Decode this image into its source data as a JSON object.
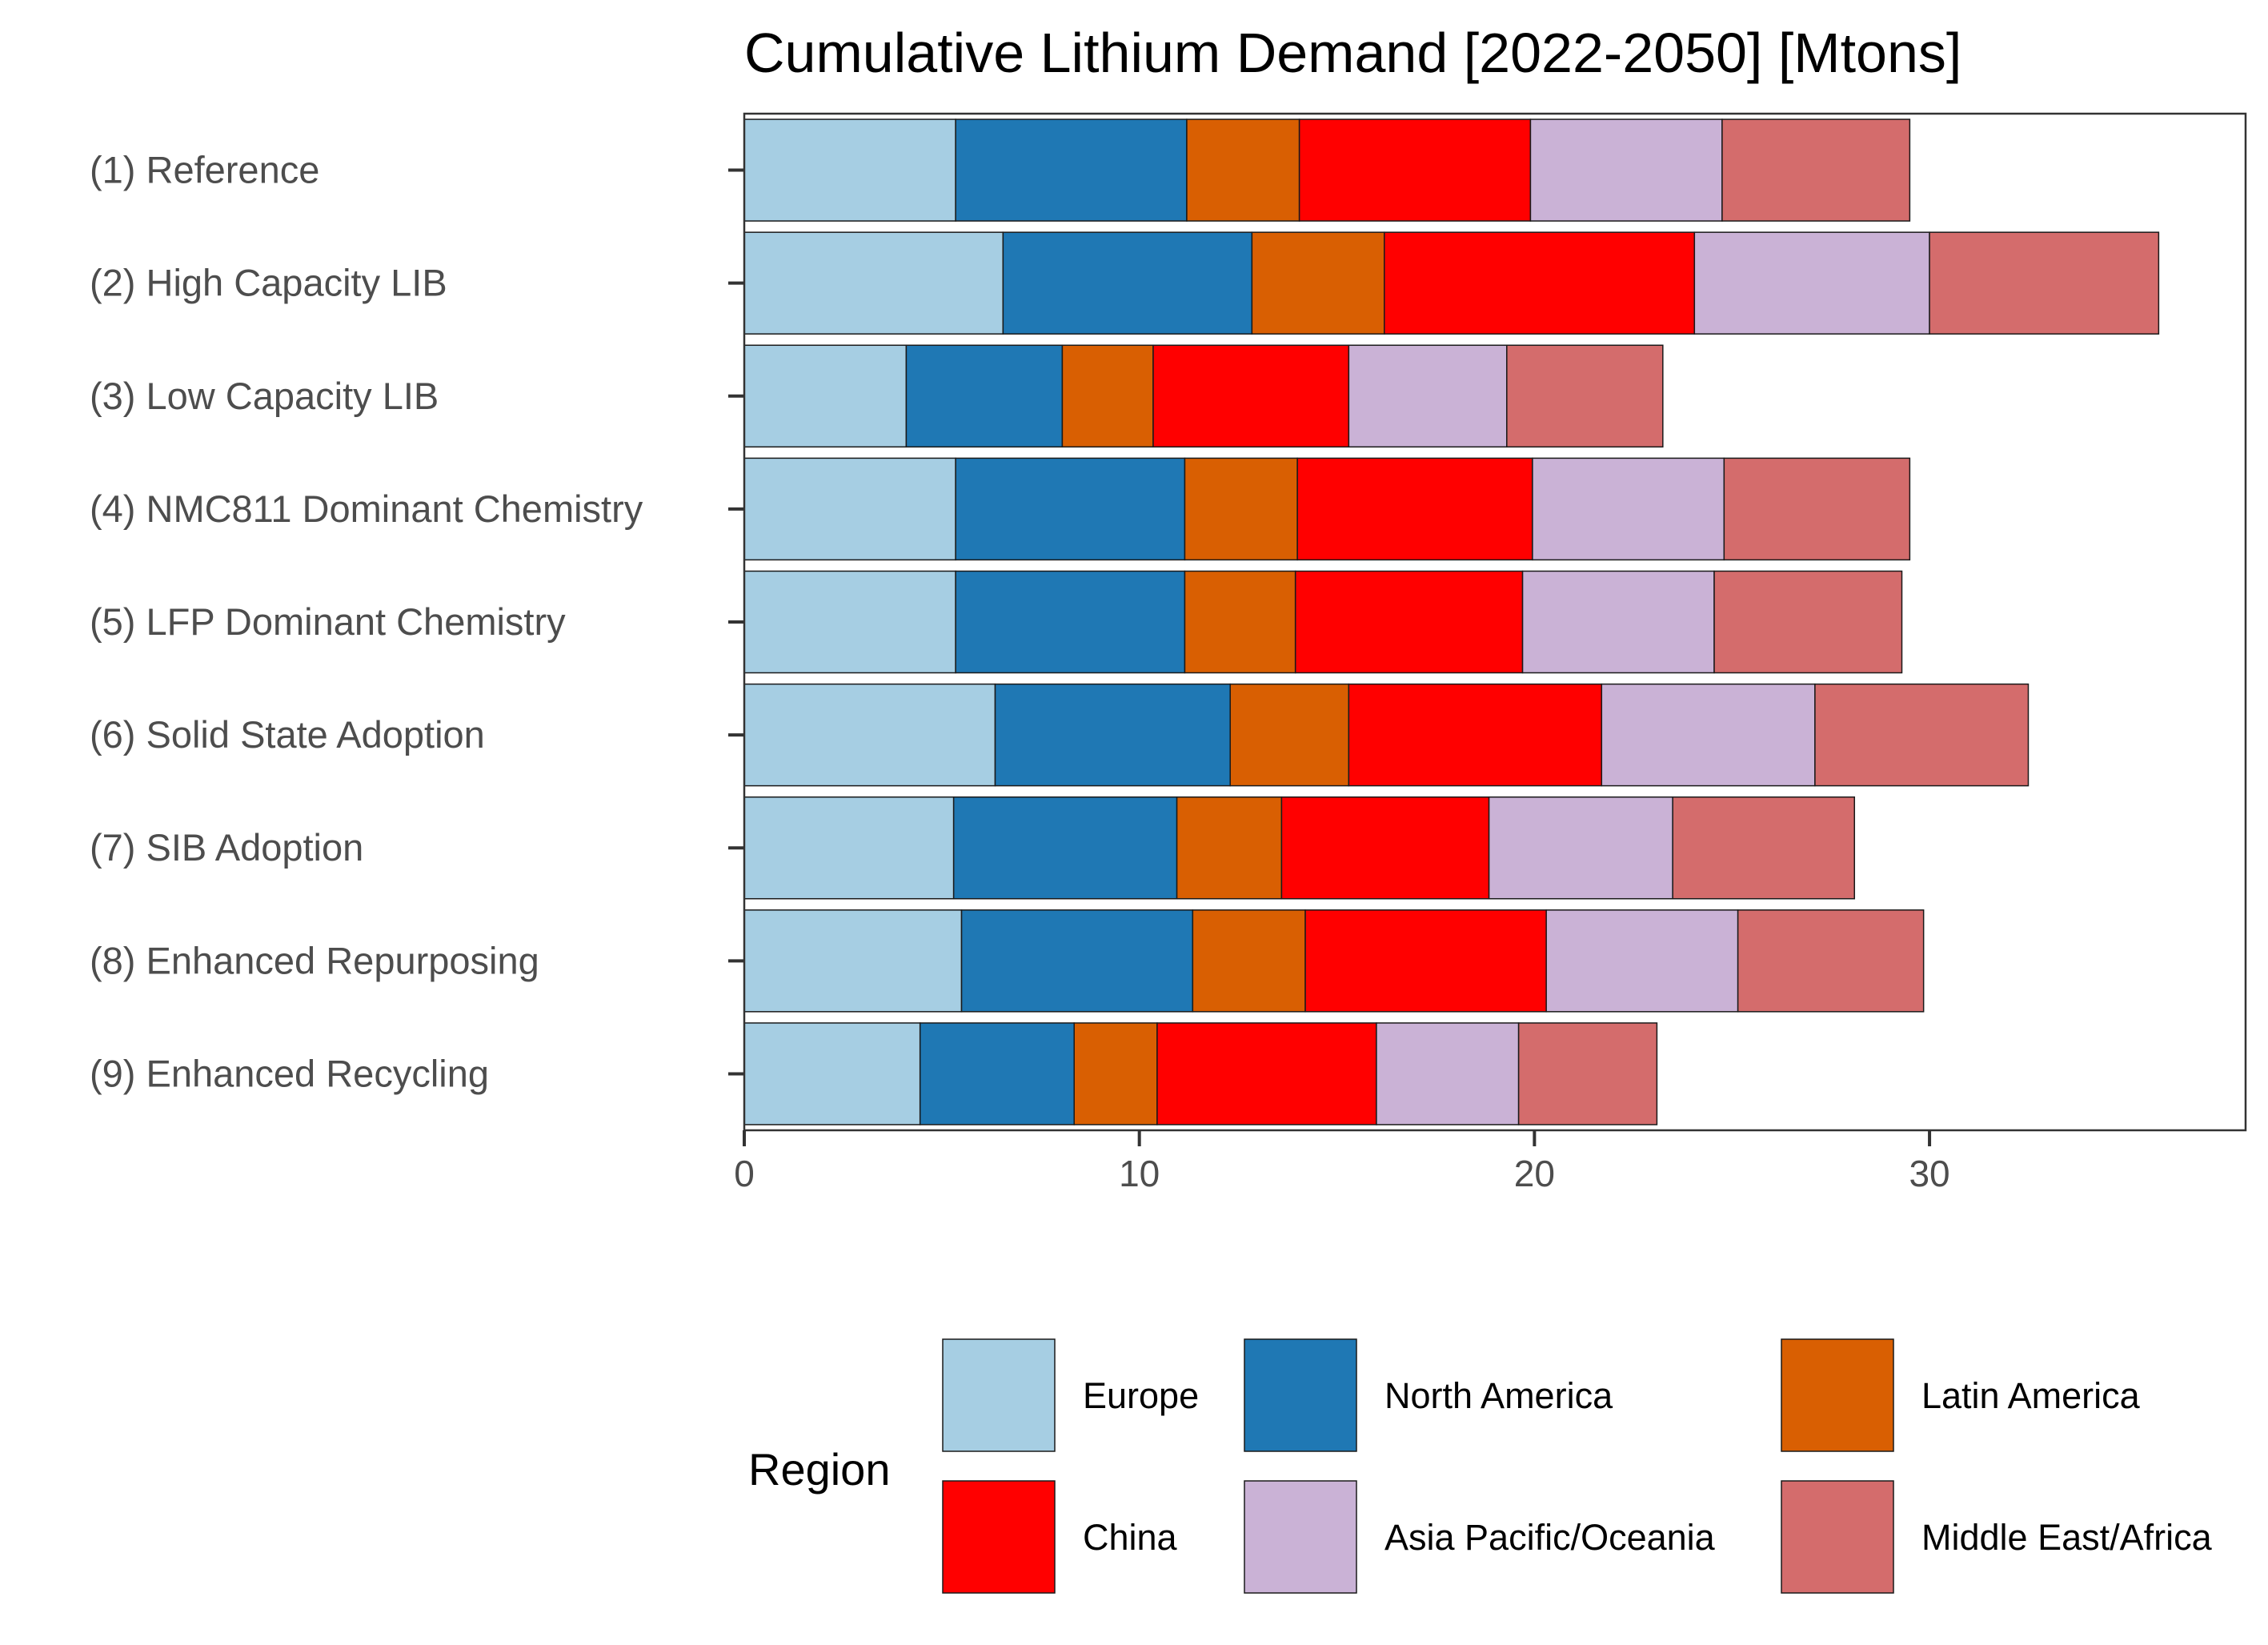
{
  "chart_data": {
    "type": "bar",
    "orientation": "horizontal",
    "stacked": true,
    "title": "Cumulative Lithium Demand [2022-2050] [Mtons]",
    "xlabel": "",
    "ylabel": "",
    "xlim": [
      0,
      38
    ],
    "x_ticks": [
      0,
      10,
      20,
      30
    ],
    "grid": false,
    "legend_title": "Region",
    "legend_position": "bottom",
    "categories": [
      "(1) Reference",
      "(2) High Capacity LIB",
      "(3) Low Capacity LIB",
      "(4) NMC811 Dominant Chemistry",
      "(5) LFP Dominant Chemistry",
      "(6) Solid State Adoption",
      "(7) SIB Adoption",
      "(8) Enhanced Repurposing",
      "(9) Enhanced Recycling"
    ],
    "series": [
      {
        "name": "Europe",
        "color": "#a6cee3",
        "values": [
          5.35,
          6.55,
          4.1,
          5.35,
          5.35,
          6.35,
          5.3,
          5.5,
          4.45
        ]
      },
      {
        "name": "North America",
        "color": "#1f78b4",
        "values": [
          5.85,
          6.3,
          3.95,
          5.8,
          5.8,
          5.95,
          5.65,
          5.85,
          3.9
        ]
      },
      {
        "name": "Latin America",
        "color": "#d95f02",
        "values": [
          2.85,
          3.35,
          2.3,
          2.85,
          2.8,
          3.0,
          2.65,
          2.85,
          2.1
        ]
      },
      {
        "name": "China",
        "color": "#ff0000",
        "values": [
          5.85,
          7.85,
          4.95,
          5.95,
          5.75,
          6.4,
          5.25,
          6.1,
          5.55
        ]
      },
      {
        "name": "Asia Pacific/Oceania",
        "color": "#cab2d6",
        "values": [
          4.85,
          5.95,
          4.0,
          4.85,
          4.85,
          5.4,
          4.65,
          4.85,
          3.6
        ]
      },
      {
        "name": "Middle East/Africa",
        "color": "#d46c6c",
        "values": [
          4.75,
          5.8,
          3.95,
          4.7,
          4.75,
          5.4,
          4.6,
          4.7,
          3.5
        ]
      }
    ]
  }
}
